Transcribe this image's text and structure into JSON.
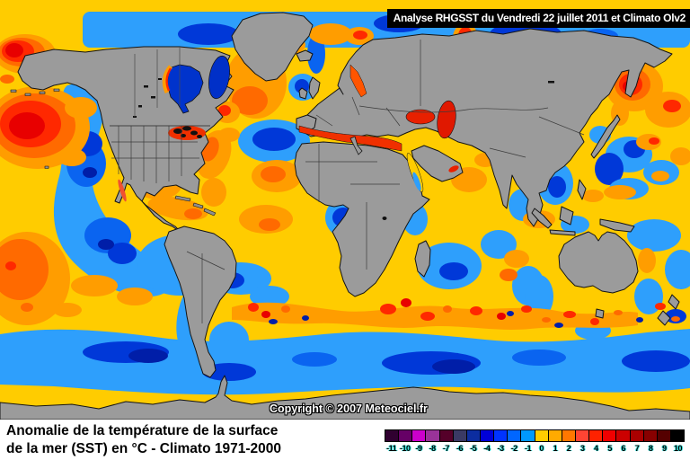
{
  "banner": {
    "text": "Analyse RHGSST  du Vendredi 22 juillet 2011 et Climato Olv2"
  },
  "map": {
    "copyright": "Copyright © 2007 Meteociel.fr"
  },
  "caption": {
    "line1": "Anomalie de la température de la surface",
    "line2": "de la mer (SST) en °C - Climato 1971-2000"
  },
  "legend": {
    "unit": "°C",
    "entries": [
      {
        "label": "-11",
        "color": "#300030"
      },
      {
        "label": "-10",
        "color": "#660066"
      },
      {
        "label": "-9",
        "color": "#CC00CC"
      },
      {
        "label": "-8",
        "color": "#993399"
      },
      {
        "label": "-7",
        "color": "#550029"
      },
      {
        "label": "-6",
        "color": "#3A3A64"
      },
      {
        "label": "-5",
        "color": "#0C2DA0"
      },
      {
        "label": "-4",
        "color": "#0000D8"
      },
      {
        "label": "-3",
        "color": "#0033FF"
      },
      {
        "label": "-2",
        "color": "#0066FF"
      },
      {
        "label": "-1",
        "color": "#0099FF"
      },
      {
        "label": "0",
        "color": "#FFCC00"
      },
      {
        "label": "1",
        "color": "#FFAA00"
      },
      {
        "label": "2",
        "color": "#FF7700"
      },
      {
        "label": "3",
        "color": "#FF4433"
      },
      {
        "label": "4",
        "color": "#FF2200"
      },
      {
        "label": "5",
        "color": "#F00000"
      },
      {
        "label": "6",
        "color": "#CC0000"
      },
      {
        "label": "7",
        "color": "#AA0000"
      },
      {
        "label": "8",
        "color": "#880000"
      },
      {
        "label": "9",
        "color": "#550000"
      },
      {
        "label": "10",
        "color": "#000000"
      }
    ]
  },
  "colors": {
    "ocean_neutral": "#FFCC00",
    "cool_light": "#2E9FFC",
    "cool_medium": "#0A64F0",
    "cool_deep": "#0038D8",
    "warm_orange": "#FF9D00",
    "warm_red": "#FF2800",
    "land": "#9B9B9B"
  }
}
